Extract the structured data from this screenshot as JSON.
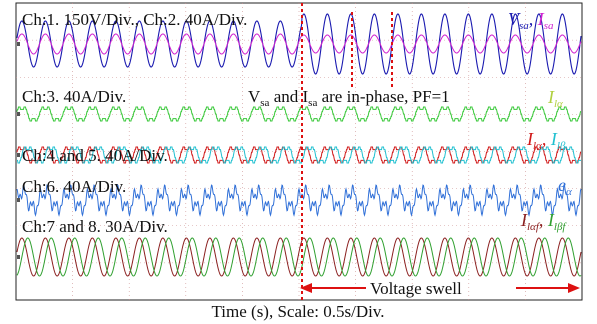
{
  "chart_data": {
    "type": "line",
    "title": "",
    "xlabel": "Time (s), Scale: 0.5s/Div.",
    "ylabel": "",
    "grid": true,
    "channel_labels": [
      "Ch:1. 150V/Div., Ch:2. 40A/Div.",
      "Ch:3. 40A/Div.",
      "Ch:4 and 5. 40A/Div.",
      "Ch:6. 40A/Div.",
      "Ch:7 and 8. 30A/Div."
    ],
    "annotations": {
      "inphase_note": "V",
      "inphase_note_sub": "sa",
      "inphase_mid": " and I",
      "inphase_mid_sub": "sa",
      "inphase_tail": " are in-phase, PF=1",
      "event": "Voltage swell"
    },
    "series_labels": {
      "vsa": "V",
      "vsa_sub": "sa",
      "isa": "I",
      "isa_sub": "sa",
      "ila": "I",
      "ila_sub": "lα",
      "ilb": "I",
      "ilb_sub": "lβ",
      "ea": "e",
      "ea_sub": "α",
      "ilaf": "I",
      "ilaf_sub": "lαf",
      "ilbf": "I",
      "ilbf_sub": "lβf"
    },
    "colors": {
      "vsa": "#1a1ab0",
      "isa": "#d020d0",
      "ila": "#38c838",
      "ila_label": "#b0d040",
      "ilalpha": "#d01818",
      "ilbeta": "#20c0d0",
      "ea": "#3070d8",
      "ilaf": "#8b2020",
      "ilbf": "#30a030",
      "grid": "#cc9090",
      "event": "#dd1111"
    }
  }
}
